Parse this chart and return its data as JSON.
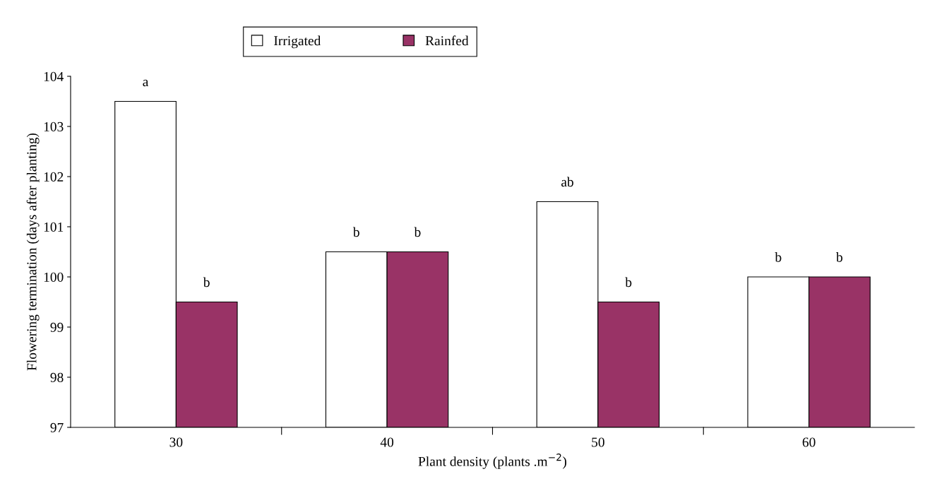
{
  "chart_data": {
    "type": "bar",
    "xlabel": "Plant density (plants .m$^{−2}$)",
    "ylabel": "Flowering termination (days after planting)",
    "categories": [
      "30",
      "40",
      "50",
      "60"
    ],
    "series": [
      {
        "name": "Irrigated",
        "color": "#ffffff",
        "values": [
          103.5,
          100.5,
          101.5,
          100
        ]
      },
      {
        "name": "Rainfed",
        "color": "#993366",
        "values": [
          99.5,
          100.5,
          99.5,
          100
        ]
      }
    ],
    "ylim": [
      97,
      104
    ],
    "yticks": [
      97,
      98,
      99,
      100,
      101,
      102,
      103,
      104
    ],
    "grid": false,
    "legend": "top",
    "annotations": [
      {
        "text": "a",
        "x": "30",
        "y": 103.5
      },
      {
        "text": "b",
        "x": "30",
        "y": 99.5
      },
      {
        "text": "b",
        "x": "40",
        "y": 100.5
      },
      {
        "text": "b",
        "x": "40",
        "y": 100.5
      },
      {
        "text": "ab",
        "x": "50",
        "y": 101.5
      },
      {
        "text": "b",
        "x": "50",
        "y": 99.5
      },
      {
        "text": "b",
        "x": "60",
        "y": 100
      },
      {
        "text": "b",
        "x": "60",
        "y": 100
      }
    ]
  }
}
